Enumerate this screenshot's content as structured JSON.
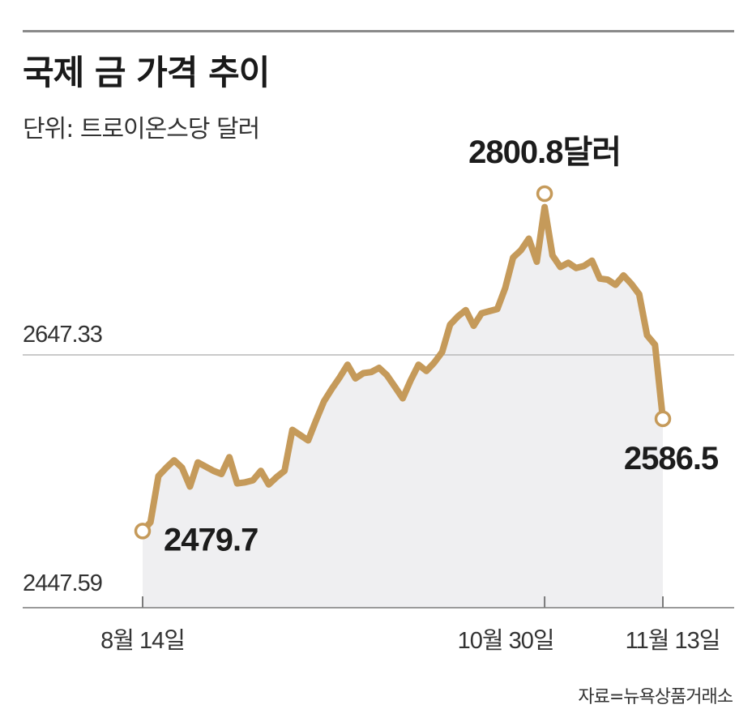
{
  "chart_data": {
    "type": "line",
    "title": "국제 금 가격 추이",
    "subtitle": "단위: 트로이온스당 달러",
    "source": "자료=뉴욕상품거래소",
    "x_tick_labels": [
      "8월 14일",
      "10월 30일",
      "11월 13일"
    ],
    "y_tick_labels": [
      "2647.33",
      "2447.59"
    ],
    "y_ticks": [
      2647.33,
      2447.59
    ],
    "ylim": [
      2447.59,
      2810
    ],
    "grid": "y-reference-line-only",
    "series": [
      {
        "x": [
          0,
          1,
          2,
          3,
          4,
          5,
          6,
          7,
          8,
          9,
          10,
          11,
          12,
          13,
          14,
          15,
          16,
          17,
          18,
          19,
          20,
          21,
          22,
          23,
          24,
          25,
          26,
          27,
          28,
          29,
          30,
          31,
          32,
          33,
          34,
          35,
          36,
          37,
          38,
          39,
          40,
          41,
          42,
          43,
          44,
          45,
          46,
          47,
          48,
          49,
          50,
          51,
          52,
          53,
          54,
          55,
          56,
          57,
          58,
          59,
          60,
          61,
          62,
          63,
          64,
          65,
          66
        ],
        "values": [
          2479.7,
          2488,
          2532,
          2540,
          2547,
          2540,
          2522,
          2545,
          2541,
          2537,
          2534,
          2550,
          2525,
          2526,
          2528,
          2537,
          2524,
          2531,
          2537,
          2576,
          2571,
          2566,
          2585,
          2603,
          2615,
          2626,
          2638,
          2625,
          2630,
          2631,
          2635,
          2628,
          2617,
          2606,
          2623,
          2638,
          2632,
          2640,
          2650,
          2676,
          2684,
          2690,
          2675,
          2687,
          2689,
          2691,
          2711,
          2740,
          2747,
          2758,
          2736,
          2788,
          2742,
          2731,
          2735,
          2730,
          2732,
          2737,
          2720,
          2719,
          2714,
          2723,
          2715,
          2705,
          2666,
          2657,
          2586.5
        ],
        "color": "#c59a5a"
      }
    ],
    "annotations": [
      {
        "label": "2479.7",
        "x": 0,
        "value": 2479.7
      },
      {
        "label": "2800.8달러",
        "x": 51,
        "value": 2800.8
      },
      {
        "label": "2586.5",
        "x": 66,
        "value": 2586.5
      }
    ]
  }
}
